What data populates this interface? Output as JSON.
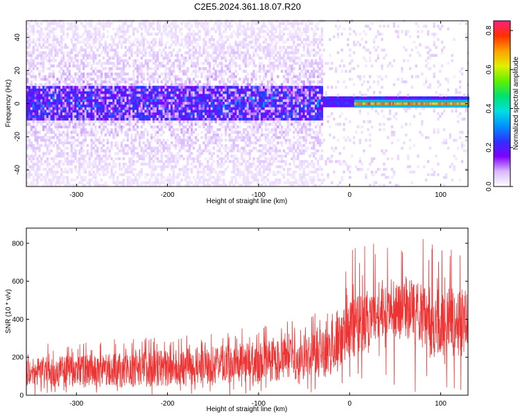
{
  "figure": {
    "title": "C2E5.2024.361.18.07.R20"
  },
  "chart_data": [
    {
      "type": "heatmap",
      "xlabel": "Height of straight line (km)",
      "ylabel": "Frequency (Hz)",
      "xlim": [
        -355,
        130
      ],
      "ylim": [
        -50,
        50
      ],
      "xticks": [
        -300,
        -200,
        -100,
        0,
        100
      ],
      "yticks": [
        -40,
        -20,
        0,
        20,
        40
      ],
      "colorbar": {
        "label": "Normalized spectral amplitude",
        "range": [
          0.0,
          0.85
        ],
        "ticks": [
          0.0,
          0.2,
          0.4,
          0.6,
          0.8
        ],
        "colormap": [
          "#ffffff",
          "#d9b8ff",
          "#7f00ff",
          "#3030ff",
          "#0090ff",
          "#00e0e0",
          "#00e070",
          "#60f000",
          "#e0f000",
          "#ffa000",
          "#ff3000",
          "#ff2080"
        ]
      },
      "features": {
        "noise_band_center_hz": 0,
        "noise_band_halfwidth_hz": 10,
        "noise_region_x": [
          -355,
          -30
        ],
        "line_region_x": [
          5,
          130
        ],
        "line_frequency_hz": 0,
        "line_amplitude": 0.7
      },
      "grid": false
    },
    {
      "type": "line",
      "xlabel": "Height of straight line (km)",
      "ylabel": "SNR (10 * v/v)",
      "xlim": [
        -355,
        130
      ],
      "ylim": [
        0,
        880
      ],
      "xticks": [
        -300,
        -200,
        -100,
        0,
        100
      ],
      "yticks": [
        0,
        200,
        400,
        600,
        800
      ],
      "color": "#ee3333",
      "envelope": {
        "x": [
          -355,
          -300,
          -250,
          -200,
          -150,
          -100,
          -60,
          -30,
          -10,
          0,
          20,
          40,
          60,
          80,
          100,
          130
        ],
        "low": [
          50,
          40,
          40,
          50,
          60,
          70,
          80,
          90,
          120,
          180,
          250,
          320,
          300,
          220,
          190,
          220
        ],
        "high": [
          200,
          210,
          220,
          240,
          260,
          280,
          310,
          350,
          420,
          500,
          560,
          620,
          630,
          580,
          560,
          580
        ],
        "peak": [
          300,
          280,
          300,
          310,
          340,
          360,
          400,
          450,
          560,
          760,
          820,
          840,
          820,
          870,
          780,
          780
        ]
      },
      "grid": false
    }
  ]
}
